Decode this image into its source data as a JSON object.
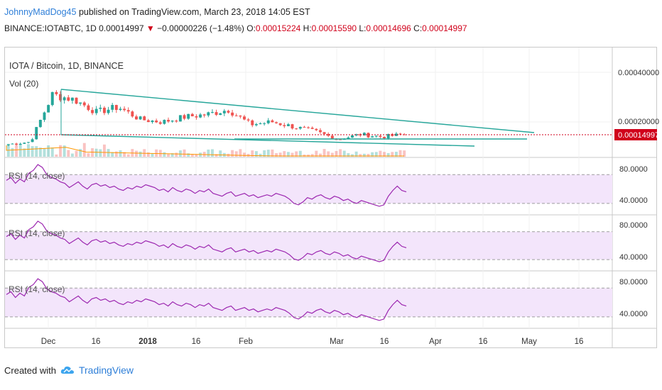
{
  "header": {
    "username": "JohnnyMadDog45",
    "published": "published on TradingView.com, March 23, 2018 14:05 EST",
    "symbol": "BINANCE:IOTABTC, 1D",
    "last": "0.00014997",
    "change_arrow": "▼",
    "change": "−0.00000226 (−1.48%)",
    "o_label": "O:",
    "o": "0.00015224",
    "h_label": "H:",
    "h": "0.00015590",
    "l_label": "L:",
    "l": "0.00014696",
    "c_label": "C:",
    "c": "0.00014997"
  },
  "footer": {
    "created_with": "Created with",
    "brand": "TradingView",
    "brand_icon": "tradingview-cloud-icon"
  },
  "colors": {
    "up": "#26a69a",
    "down": "#ef5350",
    "trend": "#26a69a",
    "rsi": "#9c27b0",
    "rsi_band": "#f3e5fb",
    "price_line": "#d0021b"
  },
  "chart_data": [
    {
      "type": "candlestick",
      "title": "IOTA / Bitcoin, 1D, BINANCE",
      "indicator_label": "Vol (20)",
      "price_axis_ticks": [
        "0.00040000",
        "0.00020000"
      ],
      "last_price_label": "0.00014997",
      "x_tick_labels": [
        "Dec",
        "16",
        "2018",
        "16",
        "Feb",
        "Mar",
        "16",
        "Apr",
        "16",
        "May",
        "16"
      ],
      "approx_close_series": [
        0.00011,
        0.00012,
        0.00031,
        0.00029,
        0.00024,
        0.00026,
        0.00021,
        0.0002,
        0.00022,
        0.00023,
        0.00025,
        0.00019,
        0.0002,
        0.00018,
        0.00016,
        0.00013,
        0.00015,
        0.00014,
        0.00015
      ],
      "trendlines": "descending wedge (two converging lines)"
    },
    {
      "type": "line",
      "title": "RSI (14, close)",
      "ticks": [
        "80.0000",
        "40.0000"
      ],
      "ylim": [
        20,
        90
      ],
      "bands": [
        70,
        30
      ]
    },
    {
      "type": "line",
      "title": "RSI (14, close)",
      "ticks": [
        "80.0000",
        "40.0000"
      ],
      "ylim": [
        20,
        90
      ],
      "bands": [
        70,
        30
      ]
    },
    {
      "type": "line",
      "title": "RSI (14, close)",
      "ticks": [
        "80.0000",
        "40.0000"
      ],
      "ylim": [
        20,
        90
      ],
      "bands": [
        70,
        30
      ]
    }
  ]
}
